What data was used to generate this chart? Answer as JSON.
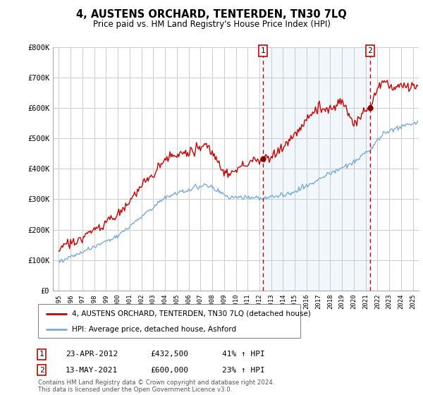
{
  "title": "4, AUSTENS ORCHARD, TENTERDEN, TN30 7LQ",
  "subtitle": "Price paid vs. HM Land Registry's House Price Index (HPI)",
  "legend_label_red": "4, AUSTENS ORCHARD, TENTERDEN, TN30 7LQ (detached house)",
  "legend_label_blue": "HPI: Average price, detached house, Ashford",
  "point1_date": "23-APR-2012",
  "point1_price": "£432,500",
  "point1_hpi": "41% ↑ HPI",
  "point1_x": 2012.3,
  "point1_y": 432500,
  "point2_date": "13-MAY-2021",
  "point2_price": "£600,000",
  "point2_hpi": "23% ↑ HPI",
  "point2_x": 2021.37,
  "point2_y": 600000,
  "ylim": [
    0,
    800000
  ],
  "yticks": [
    0,
    100000,
    200000,
    300000,
    400000,
    500000,
    600000,
    700000,
    800000
  ],
  "ytick_labels": [
    "£0",
    "£100K",
    "£200K",
    "£300K",
    "£400K",
    "£500K",
    "£600K",
    "£700K",
    "£800K"
  ],
  "xlim": [
    1994.5,
    2025.5
  ],
  "footer": "Contains HM Land Registry data © Crown copyright and database right 2024.\nThis data is licensed under the Open Government Licence v3.0.",
  "red_color": "#cc0000",
  "blue_color": "#7aaddb",
  "fill_color": "#ddeeff",
  "background_color": "#ffffff",
  "grid_color": "#cccccc",
  "dashed_color": "#cc0000"
}
